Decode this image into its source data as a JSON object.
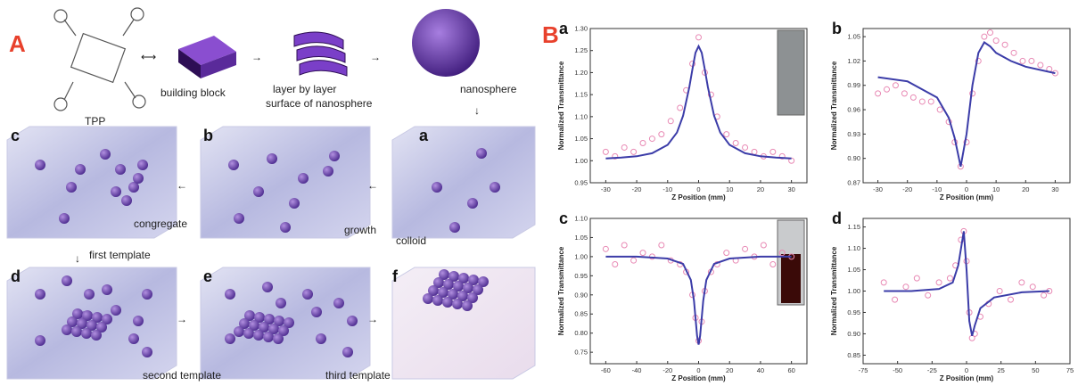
{
  "figure": {
    "panel_a_label": "A",
    "tpp": "TPP",
    "building_block": "building block",
    "layer_line1": "layer by layer",
    "layer_line2": "surface of nanosphere",
    "nanosphere": "nanosphere",
    "box_c": "c",
    "box_b": "b",
    "box_a": "a",
    "congregate": "congregate",
    "growth": "growth",
    "colloid": "colloid",
    "first_template": "first template",
    "box_d": "d",
    "box_e": "e",
    "box_f": "f",
    "second_template": "second template",
    "third_template": "third template",
    "panel_b_label": "B"
  },
  "chart_data": [
    {
      "type": "scatter",
      "panel_label": "a",
      "xlabel": "Z Position (mm)",
      "ylabel": "Normalized Transmittance",
      "xlim": [
        -35,
        35
      ],
      "xticks": [
        -30,
        -20,
        -10,
        0,
        10,
        20,
        30
      ],
      "ylim": [
        0.95,
        1.3
      ],
      "yticks": [
        0.95,
        {
          "value": 1.0,
          "label": "1.00"
        },
        1.05,
        {
          "value": 1.1,
          "label": "1.10"
        },
        1.15,
        {
          "value": 1.2,
          "label": "1.20"
        },
        1.25,
        {
          "value": 1.3,
          "label": "1.30"
        }
      ],
      "series": [
        {
          "kind": "points",
          "color": "#e889b4",
          "x": [
            -30,
            -27,
            -24,
            -21,
            -18,
            -15,
            -12,
            -9,
            -6,
            -4,
            -2,
            0,
            2,
            4,
            6,
            9,
            12,
            15,
            18,
            21,
            24,
            27,
            30
          ],
          "values": [
            1.02,
            1.01,
            1.03,
            1.02,
            1.04,
            1.05,
            1.06,
            1.09,
            1.12,
            1.16,
            1.22,
            1.28,
            1.2,
            1.15,
            1.1,
            1.06,
            1.04,
            1.03,
            1.02,
            1.01,
            1.02,
            1.01,
            1.0
          ]
        },
        {
          "kind": "fit",
          "color": "#3b3ca8",
          "x": [
            -30,
            -25,
            -20,
            -15,
            -10,
            -7,
            -5,
            -3,
            -2,
            -1,
            0,
            1,
            2,
            3,
            5,
            7,
            10,
            15,
            20,
            25,
            30
          ],
          "values": [
            1.005,
            1.007,
            1.01,
            1.017,
            1.036,
            1.064,
            1.102,
            1.167,
            1.208,
            1.245,
            1.26,
            1.245,
            1.208,
            1.167,
            1.102,
            1.064,
            1.036,
            1.017,
            1.01,
            1.007,
            1.005
          ]
        }
      ],
      "inset": true
    },
    {
      "type": "scatter",
      "panel_label": "b",
      "xlabel": "Z Position (mm)",
      "ylabel": "Normalized Transmittance",
      "xlim": [
        -35,
        35
      ],
      "xticks": [
        -30,
        -20,
        -10,
        0,
        10,
        20,
        30
      ],
      "ylim": [
        0.87,
        1.06
      ],
      "yticks": [
        0.87,
        {
          "value": 0.9,
          "label": "0.90"
        },
        0.93,
        0.96,
        0.99,
        1.02,
        1.05
      ],
      "series": [
        {
          "kind": "points",
          "color": "#e889b4",
          "x": [
            -30,
            -27,
            -24,
            -21,
            -18,
            -15,
            -12,
            -9,
            -6,
            -4,
            -2,
            0,
            2,
            4,
            6,
            8,
            10,
            13,
            16,
            19,
            22,
            25,
            28,
            30
          ],
          "values": [
            0.98,
            0.985,
            0.99,
            0.98,
            0.975,
            0.97,
            0.97,
            0.96,
            0.945,
            0.92,
            0.89,
            0.92,
            0.98,
            1.02,
            1.05,
            1.055,
            1.045,
            1.04,
            1.03,
            1.02,
            1.02,
            1.015,
            1.01,
            1.005
          ]
        },
        {
          "kind": "fit",
          "color": "#3b3ca8",
          "x": [
            -30,
            -20,
            -10,
            -6,
            -4,
            -2,
            0,
            2,
            4,
            6,
            8,
            10,
            15,
            20,
            30
          ],
          "values": [
            1.0,
            0.995,
            0.975,
            0.95,
            0.925,
            0.89,
            0.93,
            0.99,
            1.03,
            1.043,
            1.038,
            1.03,
            1.02,
            1.013,
            1.005
          ]
        }
      ],
      "inset": false
    },
    {
      "type": "scatter",
      "panel_label": "c",
      "xlabel": "Z Position (mm)",
      "ylabel": "Normalized Transmittance",
      "xlim": [
        -70,
        70
      ],
      "xticks": [
        -60,
        -40,
        -20,
        0,
        20,
        40,
        60
      ],
      "ylim": [
        0.72,
        1.1
      ],
      "yticks": [
        0.75,
        {
          "value": 0.8,
          "label": "0.80"
        },
        0.85,
        {
          "value": 0.9,
          "label": "0.90"
        },
        0.95,
        {
          "value": 1.0,
          "label": "1.00"
        },
        1.05,
        {
          "value": 1.1,
          "label": "1.10"
        }
      ],
      "series": [
        {
          "kind": "points",
          "color": "#e889b4",
          "x": [
            -60,
            -54,
            -48,
            -42,
            -36,
            -30,
            -24,
            -18,
            -12,
            -8,
            -4,
            -2,
            0,
            2,
            4,
            8,
            12,
            18,
            24,
            30,
            36,
            42,
            48,
            54,
            60
          ],
          "values": [
            1.02,
            0.98,
            1.03,
            0.99,
            1.01,
            1.0,
            1.03,
            0.99,
            0.98,
            0.96,
            0.9,
            0.84,
            0.78,
            0.83,
            0.91,
            0.96,
            0.98,
            1.01,
            0.99,
            1.02,
            1.0,
            1.03,
            0.98,
            1.01,
            1.0
          ]
        },
        {
          "kind": "fit",
          "color": "#3b3ca8",
          "x": [
            -60,
            -40,
            -20,
            -10,
            -5,
            -3,
            -1,
            0,
            1,
            3,
            5,
            10,
            20,
            40,
            60
          ],
          "values": [
            1.0,
            1.0,
            0.995,
            0.981,
            0.939,
            0.885,
            0.793,
            0.77,
            0.793,
            0.885,
            0.939,
            0.981,
            0.995,
            1.0,
            1.0
          ]
        }
      ],
      "inset": true
    },
    {
      "type": "scatter",
      "panel_label": "d",
      "xlabel": "Z Position (mm)",
      "ylabel": "Normalized Transmittance",
      "xlim": [
        -75,
        75
      ],
      "xticks": [
        -75,
        -50,
        -25,
        0,
        25,
        50,
        75
      ],
      "ylim": [
        0.83,
        1.17
      ],
      "yticks": [
        0.85,
        {
          "value": 0.9,
          "label": "0.90"
        },
        0.95,
        {
          "value": 1.0,
          "label": "1.00"
        },
        1.05,
        {
          "value": 1.1,
          "label": "1.10"
        },
        1.15
      ],
      "series": [
        {
          "kind": "points",
          "color": "#e889b4",
          "x": [
            -60,
            -52,
            -44,
            -36,
            -28,
            -20,
            -12,
            -8,
            -4,
            -2,
            0,
            2,
            4,
            6,
            10,
            16,
            24,
            32,
            40,
            48,
            56,
            60
          ],
          "values": [
            1.02,
            0.98,
            1.01,
            1.03,
            0.99,
            1.02,
            1.03,
            1.06,
            1.12,
            1.14,
            1.07,
            0.95,
            0.89,
            0.9,
            0.94,
            0.97,
            1.0,
            0.98,
            1.02,
            1.01,
            0.99,
            1.0
          ]
        },
        {
          "kind": "fit",
          "color": "#3b3ca8",
          "x": [
            -60,
            -40,
            -20,
            -10,
            -6,
            -4,
            -2,
            0,
            2,
            4,
            6,
            10,
            20,
            40,
            60
          ],
          "values": [
            1.0,
            1.0,
            1.005,
            1.02,
            1.06,
            1.1,
            1.14,
            1.05,
            0.93,
            0.895,
            0.92,
            0.96,
            0.985,
            0.997,
            1.0
          ]
        }
      ],
      "inset": false
    }
  ]
}
